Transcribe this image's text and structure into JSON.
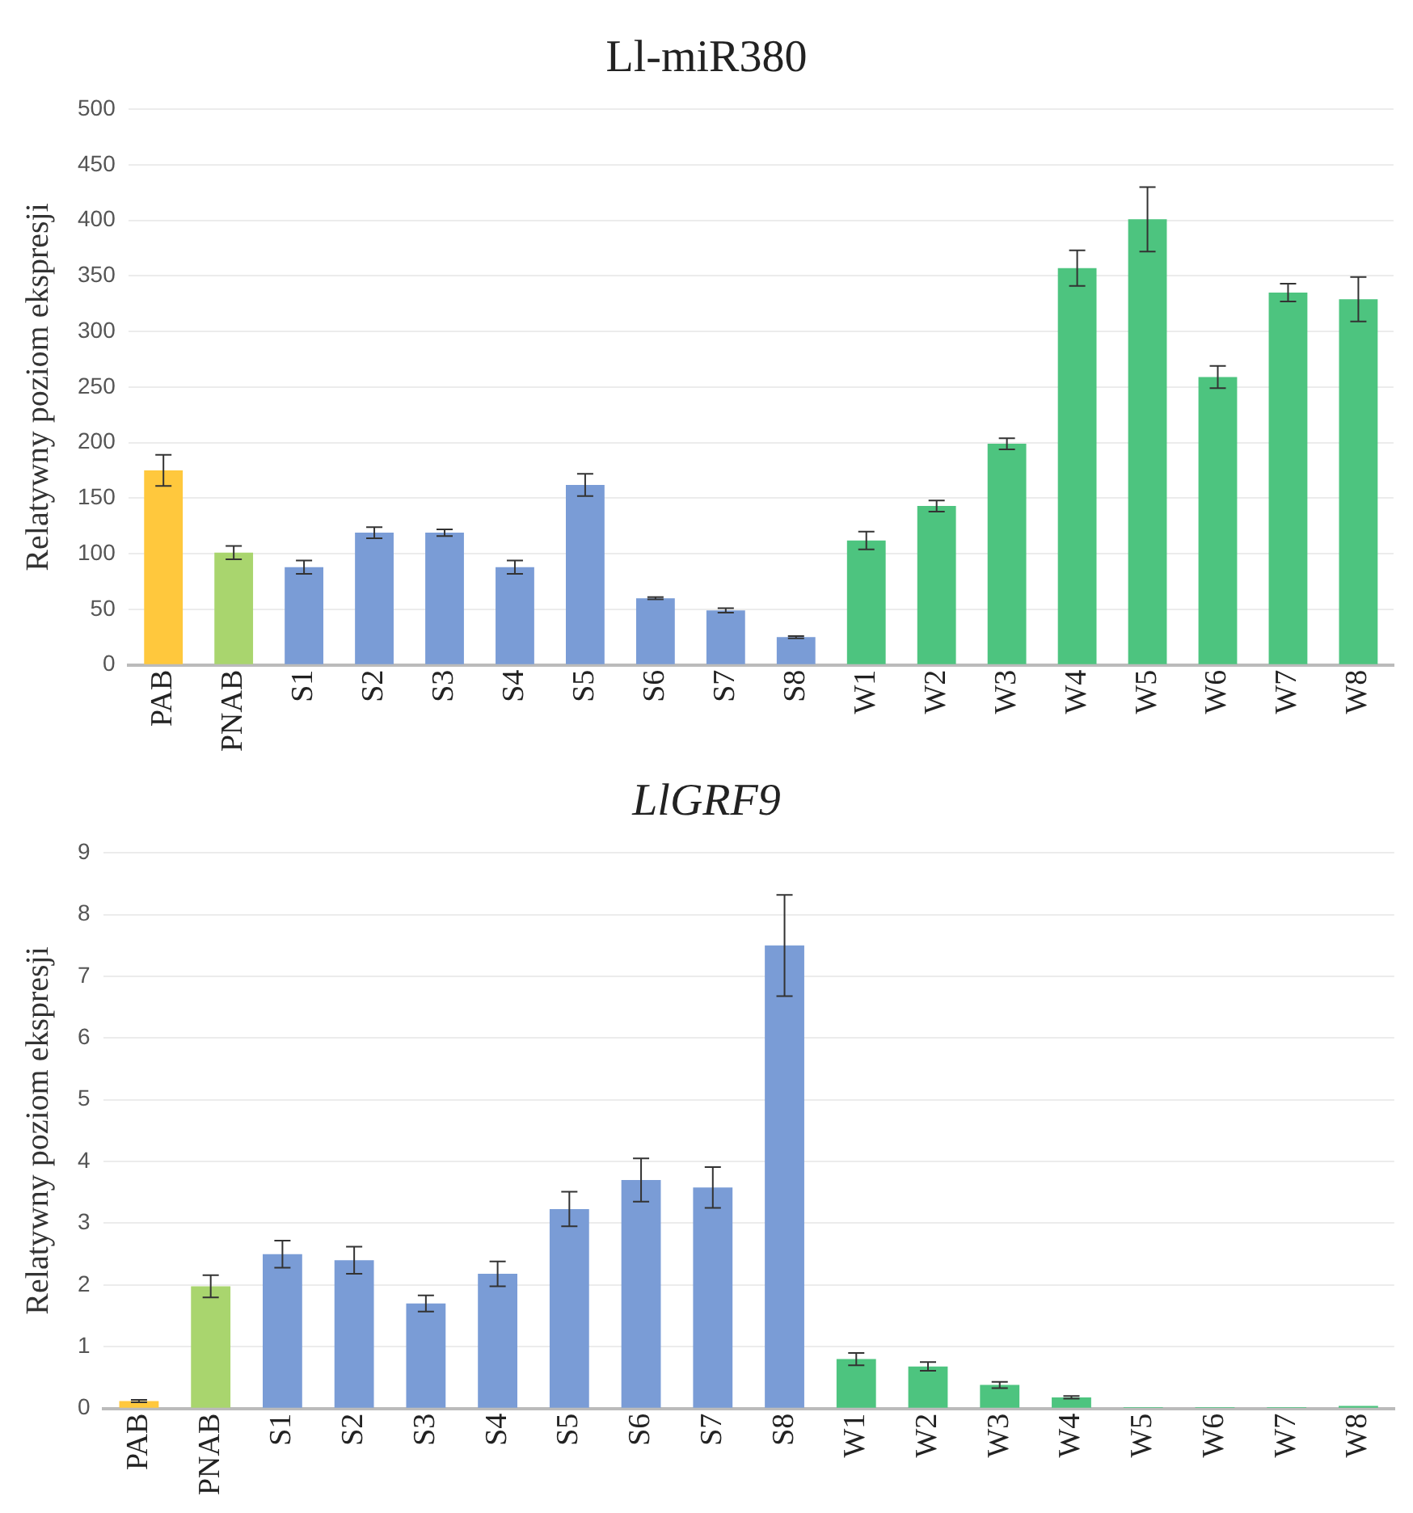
{
  "chart_data": [
    {
      "type": "bar",
      "title": "Ll-miR380",
      "ylabel": "Relatywny poziom ekspresji",
      "categories": [
        "PAB",
        "PNAB",
        "S1",
        "S2",
        "S3",
        "S4",
        "S5",
        "S6",
        "S7",
        "S8",
        "W1",
        "W2",
        "W3",
        "W4",
        "W5",
        "W6",
        "W7",
        "W8"
      ],
      "values": [
        175,
        101,
        88,
        119,
        119,
        88,
        162,
        60,
        49,
        25,
        112,
        143,
        199,
        357,
        401,
        259,
        335,
        329
      ],
      "errors": [
        14,
        6,
        6,
        5,
        3,
        6,
        10,
        1,
        2,
        1,
        8,
        5,
        5,
        16,
        29,
        10,
        8,
        20
      ],
      "colors": [
        "#ffc83d",
        "#a9d56e",
        "#7a9cd6",
        "#7a9cd6",
        "#7a9cd6",
        "#7a9cd6",
        "#7a9cd6",
        "#7a9cd6",
        "#7a9cd6",
        "#7a9cd6",
        "#4dc47f",
        "#4dc47f",
        "#4dc47f",
        "#4dc47f",
        "#4dc47f",
        "#4dc47f",
        "#4dc47f",
        "#4dc47f"
      ],
      "ylim": [
        0,
        500
      ],
      "yticks": [
        0,
        50,
        100,
        150,
        200,
        250,
        300,
        350,
        400,
        450,
        500
      ],
      "grid": "y",
      "legend": false
    },
    {
      "type": "bar",
      "title": "LlGRF9",
      "ylabel": "Relatywny poziom ekspresji",
      "categories": [
        "PAB",
        "PNAB",
        "S1",
        "S2",
        "S3",
        "S4",
        "S5",
        "S6",
        "S7",
        "S8",
        "W1",
        "W2",
        "W3",
        "W4",
        "W5",
        "W6",
        "W7",
        "W8"
      ],
      "values": [
        0.12,
        1.98,
        2.5,
        2.4,
        1.7,
        2.18,
        3.23,
        3.7,
        3.58,
        7.5,
        0.8,
        0.68,
        0.38,
        0.18,
        0.02,
        0.02,
        0.02,
        0.04
      ],
      "errors": [
        0.02,
        0.18,
        0.22,
        0.22,
        0.13,
        0.2,
        0.28,
        0.35,
        0.33,
        0.82,
        0.1,
        0.07,
        0.05,
        0.02,
        null,
        null,
        null,
        null
      ],
      "colors": [
        "#ffc83d",
        "#a9d56e",
        "#7a9cd6",
        "#7a9cd6",
        "#7a9cd6",
        "#7a9cd6",
        "#7a9cd6",
        "#7a9cd6",
        "#7a9cd6",
        "#7a9cd6",
        "#4dc47f",
        "#4dc47f",
        "#4dc47f",
        "#4dc47f",
        "#4dc47f",
        "#4dc47f",
        "#4dc47f",
        "#4dc47f"
      ],
      "ylim": [
        0,
        9
      ],
      "yticks": [
        0,
        1,
        2,
        3,
        4,
        5,
        6,
        7,
        8,
        9
      ],
      "grid": "y",
      "legend": false
    }
  ]
}
